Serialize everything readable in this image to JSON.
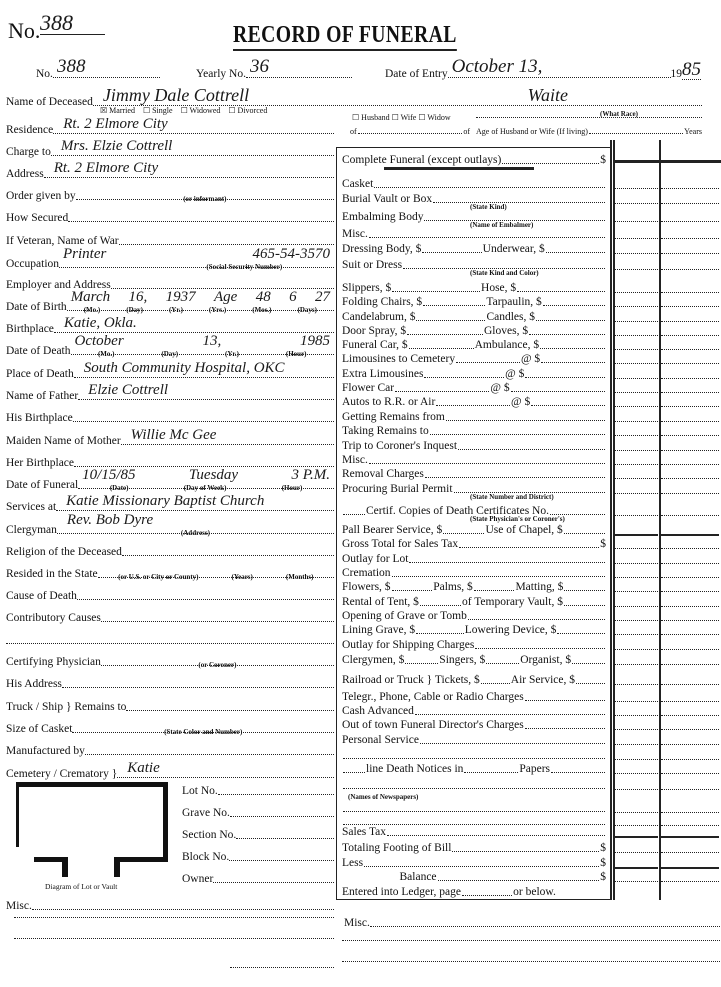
{
  "header": {
    "title": "RECORD OF FUNERAL",
    "no_label": "No.",
    "no_value": "388",
    "no2_label": "No.",
    "no2_value": "388",
    "yearly_label": "Yearly No.",
    "yearly_value": "36",
    "entry_label": "Date of Entry",
    "entry_value": "October 13,",
    "entry_year_prefix": "19",
    "entry_year": "85"
  },
  "deceased": {
    "label": "Name of Deceased",
    "name": "Jimmy Dale Cottrell",
    "race": "Waite",
    "race_caption": "(What Race)",
    "marital": [
      {
        "label": "Married",
        "checked": true
      },
      {
        "label": "Single",
        "checked": false
      },
      {
        "label": "Widowed",
        "checked": false
      },
      {
        "label": "Divorced",
        "checked": false
      }
    ],
    "spouse": {
      "husband": "Husband",
      "wife": "Wife",
      "widow": "Widow",
      "of1": "of",
      "of2": "of",
      "age_text": "Age of Husband or Wife (If living)",
      "years": "Years"
    }
  },
  "left_fields": [
    {
      "label": "Residence",
      "values": [
        "Rt. 2 Elmore City"
      ]
    },
    {
      "label": "Charge to",
      "values": [
        "Mrs. Elzie Cottrell"
      ]
    },
    {
      "label": "Address",
      "values": [
        "Rt. 2 Elmore City"
      ]
    },
    {
      "label": "Order given by",
      "values": [],
      "captions": [
        "(or informant)"
      ]
    },
    {
      "label": "How Secured",
      "values": []
    },
    {
      "label": "If Veteran, Name of War",
      "values": []
    },
    {
      "label": "Occupation",
      "values": [
        "Printer",
        "465-54-3570"
      ],
      "captions": [
        "",
        "(Social Security Number)"
      ]
    },
    {
      "label": "Employer and Address",
      "values": []
    },
    {
      "label": "Date of Birth",
      "values": [
        "March",
        "16,",
        "1937",
        "Age",
        "48",
        "6",
        "27"
      ],
      "captions": [
        "(Mo.)",
        "(Day)",
        "(Yr.)",
        "(Yrs.)",
        "(Mos.)",
        "(Days)"
      ]
    },
    {
      "label": "Birthplace",
      "values": [
        "Katie, Okla."
      ]
    },
    {
      "label": "Date of Death",
      "values": [
        "October",
        "13,",
        "1985"
      ],
      "captions": [
        "(Mo.)",
        "(Day)",
        "(Yr.)",
        "(Hour)"
      ]
    },
    {
      "label": "Place of Death",
      "values": [
        "South Community Hospital, OKC"
      ]
    },
    {
      "label": "Name of Father",
      "values": [
        "Elzie Cottrell"
      ]
    },
    {
      "label": "His Birthplace",
      "values": []
    },
    {
      "label": "Maiden Name of Mother",
      "values": [
        "Willie Mc Gee"
      ]
    },
    {
      "label": "Her Birthplace",
      "values": []
    },
    {
      "label": "Date of Funeral",
      "values": [
        "10/15/85",
        "Tuesday",
        "3 P.M."
      ],
      "captions": [
        "(Date)",
        "(Day of Week)",
        "(Hour)"
      ]
    },
    {
      "label": "Services at",
      "values": [
        "Katie Missionary Baptist Church"
      ]
    },
    {
      "label": "Clergyman",
      "values": [
        "Rev. Bob Dyre"
      ],
      "captions": [
        "(Address)"
      ]
    },
    {
      "label": "Religion of the Deceased",
      "values": []
    },
    {
      "label": "Resided in the State",
      "values": [],
      "captions": [
        "(or U.S. or City or County)",
        "(Years)",
        "(Months)"
      ]
    },
    {
      "label": "Cause of Death",
      "values": []
    },
    {
      "label": "Contributory Causes",
      "values": []
    },
    {
      "label": "",
      "values": []
    },
    {
      "label": "Certifying Physician",
      "values": [],
      "captions": [
        "(or Coroner)"
      ]
    },
    {
      "label": "His Address",
      "values": []
    },
    {
      "label": "Truck / Ship }  Remains to",
      "values": []
    },
    {
      "label": "Size of Casket",
      "values": [],
      "captions": [
        "(State Color and Number)"
      ]
    },
    {
      "label": "Manufactured by",
      "values": []
    },
    {
      "label": "Cemetery / Crematory }",
      "values": [
        "Katie"
      ]
    }
  ],
  "lot": {
    "fields": [
      "Lot No.",
      "Grave No.",
      "Section No.",
      "Block No.",
      "Owner"
    ],
    "diagram_caption": "Diagram of Lot or Vault",
    "misc_label": "Misc."
  },
  "charges": [
    {
      "segs": [
        "Complete Funeral (except outlays)",
        "$"
      ]
    },
    {
      "segs": [
        "Casket"
      ]
    },
    {
      "segs": [
        "Burial Vault or Box"
      ],
      "caption": "(State Kind)"
    },
    {
      "segs": [
        "Embalming Body"
      ],
      "caption": "(Name of Embalmer)"
    },
    {
      "segs": [
        "Misc."
      ]
    },
    {
      "segs": [
        "Dressing Body, $",
        "Underwear, $"
      ]
    },
    {
      "segs": [
        "Suit or Dress"
      ],
      "caption": "(State Kind and Color)"
    },
    {
      "segs": [
        "Slippers, $",
        "Hose, $"
      ]
    },
    {
      "segs": [
        "Folding Chairs, $",
        "Tarpaulin, $"
      ]
    },
    {
      "segs": [
        "Candelabrum, $",
        "Candles, $"
      ]
    },
    {
      "segs": [
        "Door Spray, $",
        "Gloves, $"
      ]
    },
    {
      "segs": [
        "Funeral Car, $",
        "Ambulance, $"
      ]
    },
    {
      "segs": [
        "Limousines to Cemetery",
        "@ $"
      ]
    },
    {
      "segs": [
        "Extra Limousines",
        "@ $"
      ]
    },
    {
      "segs": [
        "Flower Car",
        "@ $"
      ]
    },
    {
      "segs": [
        "Autos to R.R. or Air",
        "@ $"
      ]
    },
    {
      "segs": [
        "Getting Remains from"
      ]
    },
    {
      "segs": [
        "Taking Remains to"
      ]
    },
    {
      "segs": [
        "Trip to Coroner's Inquest"
      ]
    },
    {
      "segs": [
        "Misc."
      ]
    },
    {
      "segs": [
        "Removal Charges"
      ]
    },
    {
      "segs": [
        "Procuring Burial Permit"
      ],
      "caption": "(State Number and District)"
    },
    {
      "segs": [
        "",
        "Certif. Copies of Death Certificates No."
      ],
      "caption": "(State Physician's or Coroner's)"
    },
    {
      "segs": [
        "Pall Bearer Service, $",
        "Use of Chapel, $"
      ]
    },
    {
      "segs": [
        "Gross Total for Sales Tax",
        "$"
      ]
    },
    {
      "segs": [
        "Outlay for Lot"
      ]
    },
    {
      "segs": [
        "Cremation"
      ]
    },
    {
      "segs": [
        "Flowers, $",
        "Palms, $",
        "Matting, $"
      ]
    },
    {
      "segs": [
        "Rental of Tent, $",
        "of Temporary Vault, $"
      ]
    },
    {
      "segs": [
        "Opening of Grave or Tomb"
      ]
    },
    {
      "segs": [
        "Lining Grave, $",
        "Lowering Device, $"
      ]
    },
    {
      "segs": [
        "Outlay for Shipping Charges"
      ]
    },
    {
      "segs": [
        "Clergymen, $",
        "Singers, $",
        "Organist, $"
      ]
    },
    {
      "segs": [
        "Railroad or Truck }  Tickets, $",
        "Air Service, $"
      ]
    },
    {
      "segs": [
        "Telegr., Phone, Cable or Radio Charges"
      ]
    },
    {
      "segs": [
        "Cash Advanced"
      ]
    },
    {
      "segs": [
        "Out of town Funeral Director's Charges"
      ]
    },
    {
      "segs": [
        "Personal Service"
      ]
    },
    {
      "segs": [
        ""
      ]
    },
    {
      "segs": [
        "",
        "line Death Notices in",
        "Papers"
      ]
    },
    {
      "segs": [
        ""
      ],
      "caption": "(Names of Newspapers)"
    },
    {
      "segs": [
        ""
      ]
    },
    {
      "segs": [
        ""
      ]
    },
    {
      "segs": [
        "Sales Tax"
      ]
    },
    {
      "segs": [
        "Totaling Footing of Bill",
        "$"
      ]
    },
    {
      "segs": [
        "Less",
        "$"
      ]
    },
    {
      "segs": [
        "                    Balance",
        "$"
      ]
    },
    {
      "segs": [
        "Entered into Ledger, page",
        "or below."
      ]
    }
  ],
  "bottom": {
    "misc_label": "Misc."
  }
}
